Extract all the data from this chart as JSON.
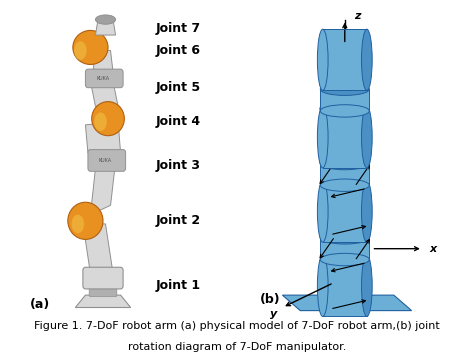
{
  "caption_line1": "Figure 1. 7-DoF robot arm (a) physical model of 7-DoF robot arm,(b) joint",
  "caption_line2": "rotation diagram of 7-DoF manipulator.",
  "joint_labels": [
    "Joint 1",
    "Joint 2",
    "Joint 3",
    "Joint 4",
    "Joint 5",
    "Joint 6",
    "Joint 7"
  ],
  "label_a": "(a)",
  "label_b": "(b)",
  "cylinder_color": "#6BAED6",
  "cylinder_dark": "#4A90C4",
  "cylinder_edge_color": "#2060A0",
  "base_color": "#6BAED6",
  "base_edge_color": "#2060A0",
  "background_color": "#ffffff",
  "text_color": "black",
  "caption_fontsize": 8.0,
  "label_fontsize": 9,
  "joint_label_fontsize": 9,
  "arm_color": "#d8d8d8",
  "arm_edge": "#909090",
  "orange_color": "#E89020",
  "orange_edge": "#B06010"
}
